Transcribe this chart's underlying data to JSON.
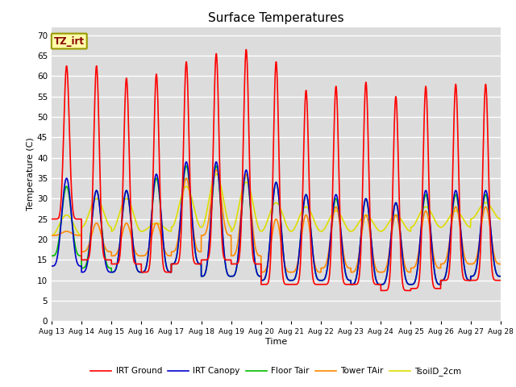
{
  "title": "Surface Temperatures",
  "xlabel": "Time",
  "ylabel": "Temperature (C)",
  "ylim": [
    0,
    72
  ],
  "yticks": [
    0,
    5,
    10,
    15,
    20,
    25,
    30,
    35,
    40,
    45,
    50,
    55,
    60,
    65,
    70
  ],
  "bg_color": "#dcdcdc",
  "series": {
    "IRT Ground": {
      "color": "#ff0000",
      "lw": 1.2
    },
    "IRT Canopy": {
      "color": "#0000cc",
      "lw": 1.2
    },
    "Floor Tair": {
      "color": "#00bb00",
      "lw": 1.2
    },
    "Tower TAir": {
      "color": "#ff8800",
      "lw": 1.2
    },
    "TsoilD_2cm": {
      "color": "#dddd00",
      "lw": 1.2
    }
  },
  "xtick_labels": [
    "Aug 13",
    "Aug 14",
    "Aug 15",
    "Aug 16",
    "Aug 17",
    "Aug 18",
    "Aug 19",
    "Aug 20",
    "Aug 21",
    "Aug 22",
    "Aug 23",
    "Aug 24",
    "Aug 25",
    "Aug 26",
    "Aug 27",
    "Aug 28"
  ],
  "station_label": "TZ_irt",
  "days": 15,
  "pts_per_day": 288,
  "irt_ground_peaks": [
    62.5,
    62.5,
    59.5,
    60.5,
    63.5,
    65.5,
    66.5,
    63.5,
    56.5,
    57.5,
    58.5,
    55.0,
    57.5,
    58.0,
    58.0
  ],
  "irt_ground_mins": [
    25.0,
    15.0,
    14.0,
    12.0,
    14.0,
    15.0,
    14.0,
    9.0,
    9.0,
    9.0,
    9.0,
    7.5,
    8.0,
    10.0,
    10.0
  ],
  "canopy_peaks": [
    35.0,
    32.0,
    32.0,
    36.0,
    39.0,
    39.0,
    37.0,
    34.0,
    31.0,
    31.0,
    30.0,
    29.0,
    32.0,
    32.0,
    32.0
  ],
  "canopy_mins": [
    13.5,
    12.0,
    12.0,
    12.0,
    14.0,
    11.0,
    11.0,
    10.0,
    10.0,
    10.0,
    9.0,
    9.0,
    9.0,
    10.0,
    11.0
  ],
  "floor_peaks": [
    33.0,
    32.0,
    32.0,
    35.0,
    38.0,
    38.0,
    36.0,
    34.0,
    31.0,
    30.0,
    30.0,
    29.0,
    31.0,
    31.0,
    31.0
  ],
  "floor_mins": [
    16.0,
    13.0,
    12.0,
    12.0,
    14.0,
    11.0,
    11.0,
    10.0,
    10.0,
    10.0,
    9.0,
    9.0,
    9.0,
    10.0,
    11.0
  ],
  "tower_peaks": [
    22.0,
    24.0,
    24.0,
    24.0,
    35.0,
    37.0,
    36.0,
    25.0,
    26.0,
    28.0,
    26.0,
    26.0,
    27.0,
    28.0,
    28.0
  ],
  "tower_mins": [
    21.0,
    17.0,
    16.0,
    16.0,
    17.0,
    21.0,
    16.0,
    12.0,
    12.0,
    13.0,
    12.0,
    12.0,
    13.0,
    14.0,
    14.0
  ],
  "soil_peaks": [
    26.0,
    30.0,
    30.0,
    24.0,
    33.0,
    36.0,
    34.0,
    29.0,
    28.0,
    27.0,
    26.0,
    26.0,
    28.0,
    27.0,
    29.0
  ],
  "soil_mins": [
    21.0,
    23.0,
    22.0,
    22.0,
    23.0,
    23.0,
    22.0,
    22.0,
    22.0,
    22.0,
    22.0,
    22.0,
    23.0,
    23.0,
    25.0
  ],
  "peak_power_ground": 6,
  "peak_power_others": 2
}
